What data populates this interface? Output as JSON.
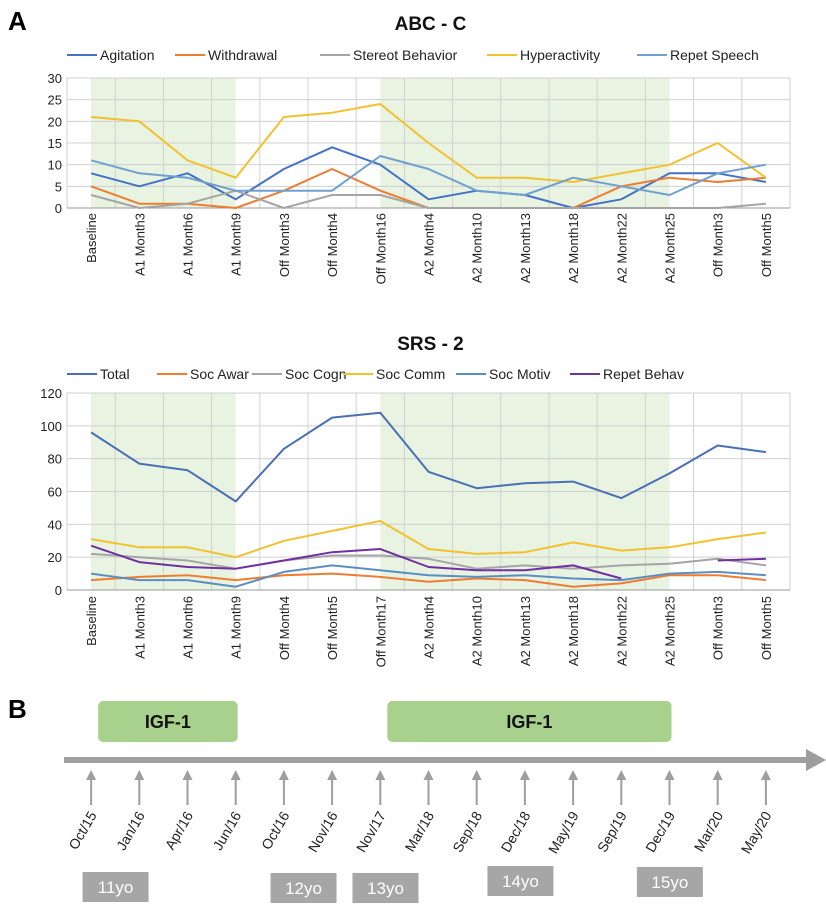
{
  "colors": {
    "agitation": "#4472c4",
    "withdrawal": "#ed7d31",
    "stereot": "#a5a5a5",
    "hyper": "#f2c12e",
    "repet_speech": "#6fa0cf",
    "total": "#4a6fb5",
    "soc_motiv": "#5b8fc2",
    "repet_behav": "#7030a0",
    "shade": "#e8f3e1",
    "igf_box": "#a9d18e",
    "arrow": "#9e9e9e",
    "age_box": "#a6a6a6",
    "grid": "#d0d0d0"
  },
  "panels": {
    "a_label": "A",
    "b_label": "B"
  },
  "chart_data": [
    {
      "type": "line",
      "title": "ABC - C",
      "categories": [
        "Baseline",
        "A1 Month3",
        "A1 Month6",
        "A1 Month9",
        "Off Month3",
        "Off Month4",
        "Off Month16",
        "A2 Month4",
        "A2 Month10",
        "A2 Month13",
        "A2 Month18",
        "A2 Month22",
        "A2 Month25",
        "Off Month3",
        "Off Month5"
      ],
      "ylim": [
        0,
        30
      ],
      "yticks": [
        0,
        5,
        10,
        15,
        20,
        25,
        30
      ],
      "grid": true,
      "legend_position": "top",
      "shaded_ranges": [
        [
          0,
          3
        ],
        [
          6,
          12
        ]
      ],
      "series": [
        {
          "name": "Agitation",
          "color_key": "agitation",
          "values": [
            8,
            5,
            8,
            2,
            9,
            14,
            10,
            2,
            4,
            3,
            0,
            2,
            8,
            8,
            6
          ]
        },
        {
          "name": "Withdrawal",
          "color_key": "withdrawal",
          "values": [
            5,
            1,
            1,
            0,
            4,
            9,
            4,
            0,
            0,
            0,
            0,
            5,
            7,
            6,
            7
          ]
        },
        {
          "name": "Stereot Behavior",
          "color_key": "stereot",
          "values": [
            3,
            0,
            1,
            4,
            0,
            3,
            3,
            0,
            0,
            0,
            0,
            0,
            0,
            0,
            1
          ]
        },
        {
          "name": "Hyperactivity",
          "color_key": "hyper",
          "values": [
            21,
            20,
            11,
            7,
            21,
            22,
            24,
            15,
            7,
            7,
            6,
            8,
            10,
            15,
            7
          ]
        },
        {
          "name": "Repet Speech",
          "color_key": "repet_speech",
          "values": [
            11,
            8,
            7,
            4,
            4,
            4,
            12,
            9,
            4,
            3,
            7,
            5,
            3,
            8,
            10
          ]
        }
      ]
    },
    {
      "type": "line",
      "title": "SRS - 2",
      "categories": [
        "Baseline",
        "A1 Month3",
        "A1 Month6",
        "A1 Month9",
        "Off Month4",
        "Off Month5",
        "Off Month17",
        "A2 Month4",
        "A2 Month10",
        "A2 Month13",
        "A2 Month18",
        "A2 Month22",
        "A2 Month25",
        "Off Month3",
        "Off Month5"
      ],
      "ylim": [
        0,
        120
      ],
      "yticks": [
        0,
        20,
        40,
        60,
        80,
        100,
        120
      ],
      "grid": true,
      "legend_position": "top",
      "shaded_ranges": [
        [
          0,
          3
        ],
        [
          6,
          12
        ]
      ],
      "series": [
        {
          "name": "Total",
          "color_key": "total",
          "values": [
            96,
            77,
            73,
            54,
            86,
            105,
            108,
            72,
            62,
            65,
            66,
            56,
            71,
            88,
            84
          ]
        },
        {
          "name": "Soc Awar",
          "color_key": "withdrawal",
          "values": [
            6,
            8,
            9,
            6,
            9,
            10,
            8,
            5,
            7,
            6,
            2,
            4,
            9,
            9,
            6
          ]
        },
        {
          "name": "Soc Cogn",
          "color_key": "stereot",
          "values": [
            22,
            20,
            18,
            13,
            18,
            21,
            21,
            19,
            13,
            15,
            13,
            15,
            16,
            19,
            15
          ]
        },
        {
          "name": "Soc Comm",
          "color_key": "hyper",
          "values": [
            31,
            26,
            26,
            20,
            30,
            36,
            42,
            25,
            22,
            23,
            29,
            24,
            26,
            31,
            35
          ]
        },
        {
          "name": "Soc Motiv",
          "color_key": "soc_motiv",
          "values": [
            10,
            6,
            6,
            2,
            11,
            15,
            12,
            9,
            8,
            9,
            7,
            6,
            10,
            11,
            9
          ]
        },
        {
          "name": "Repet Behav",
          "color_key": "repet_behav",
          "values": [
            27,
            17,
            14,
            13,
            18,
            23,
            25,
            14,
            12,
            12,
            15,
            7,
            null,
            18,
            19
          ]
        }
      ]
    }
  ],
  "timeline": {
    "igf_boxes": [
      {
        "label": "IGF-1",
        "start_index": 0,
        "end_index": 3
      },
      {
        "label": "IGF-1",
        "start_index": 6,
        "end_index": 12
      }
    ],
    "dates": [
      "Oct/15",
      "Jan/16",
      "Apr/16",
      "Jun/16",
      "Oct/16",
      "Nov/16",
      "Nov/17",
      "Mar/18",
      "Sep/18",
      "Dec/18",
      "May/19",
      "Sep/19",
      "Dec/19",
      "Mar/20",
      "May/20"
    ],
    "ages": [
      {
        "label": "11yo",
        "at_index": 0.3
      },
      {
        "label": "12yo",
        "at_index": 4.2
      },
      {
        "label": "13yo",
        "at_index": 5.9
      },
      {
        "label": "14yo",
        "at_index": 8.7
      },
      {
        "label": "15yo",
        "at_index": 11.8
      }
    ]
  }
}
